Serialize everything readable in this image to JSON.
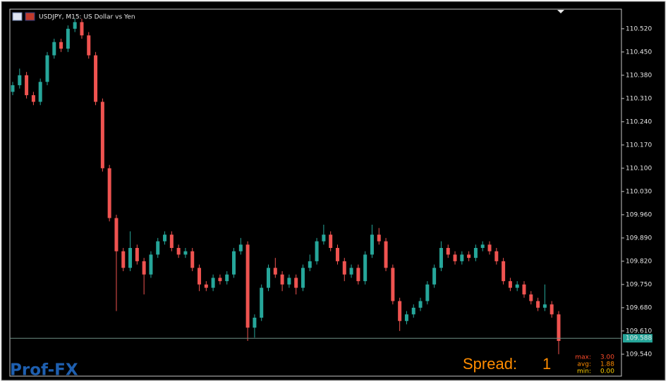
{
  "chart_data": {
    "type": "candlestick",
    "title": "USDJPY, M15:  US Dollar vs Yen",
    "up_color": "#26a69a",
    "down_color": "#ef5350",
    "open": [
      110.33,
      110.35,
      110.38,
      110.32,
      110.3,
      110.36,
      110.44,
      110.48,
      110.46,
      110.52,
      110.54,
      110.5,
      110.44,
      110.3,
      110.1,
      109.95,
      109.85,
      109.8,
      109.86,
      109.82,
      109.78,
      109.84,
      109.88,
      109.9,
      109.86,
      109.84,
      109.85,
      109.8,
      109.75,
      109.74,
      109.77,
      109.76,
      109.78,
      109.85,
      109.87,
      109.62,
      109.65,
      109.74,
      109.8,
      109.78,
      109.75,
      109.77,
      109.74,
      109.8,
      109.82,
      109.88,
      109.9,
      109.86,
      109.82,
      109.78,
      109.8,
      109.76,
      109.84,
      109.9,
      109.88,
      109.8,
      109.7,
      109.64,
      109.66,
      109.68,
      109.7,
      109.75,
      109.8,
      109.86,
      109.84,
      109.82,
      109.84,
      109.83,
      109.86,
      109.87,
      109.85,
      109.82,
      109.76,
      109.74,
      109.75,
      109.72,
      109.7,
      109.68,
      109.69,
      109.66
    ],
    "high": [
      110.36,
      110.4,
      110.39,
      110.33,
      110.37,
      110.45,
      110.49,
      110.49,
      110.53,
      110.55,
      110.55,
      110.51,
      110.45,
      110.31,
      110.11,
      109.96,
      109.86,
      109.91,
      109.87,
      109.83,
      109.85,
      109.89,
      109.91,
      109.91,
      109.87,
      109.86,
      109.86,
      109.81,
      109.76,
      109.78,
      109.78,
      109.79,
      109.86,
      109.89,
      109.88,
      109.66,
      109.75,
      109.81,
      109.83,
      109.79,
      109.78,
      109.78,
      109.81,
      109.84,
      109.89,
      109.93,
      109.91,
      109.87,
      109.83,
      109.81,
      109.81,
      109.85,
      109.93,
      109.92,
      109.89,
      109.81,
      109.71,
      109.67,
      109.69,
      109.71,
      109.76,
      109.81,
      109.88,
      109.87,
      109.85,
      109.85,
      109.85,
      109.87,
      109.88,
      109.88,
      109.86,
      109.83,
      109.77,
      109.76,
      109.76,
      109.73,
      109.71,
      109.75,
      109.7,
      109.67
    ],
    "low": [
      110.32,
      110.34,
      110.31,
      110.29,
      110.29,
      110.35,
      110.43,
      110.45,
      110.45,
      110.51,
      110.49,
      110.43,
      110.29,
      110.09,
      109.94,
      109.67,
      109.79,
      109.79,
      109.81,
      109.72,
      109.77,
      109.83,
      109.87,
      109.85,
      109.83,
      109.83,
      109.79,
      109.73,
      109.73,
      109.73,
      109.75,
      109.75,
      109.77,
      109.84,
      109.58,
      109.59,
      109.64,
      109.73,
      109.77,
      109.73,
      109.74,
      109.72,
      109.73,
      109.79,
      109.81,
      109.87,
      109.85,
      109.81,
      109.76,
      109.77,
      109.75,
      109.75,
      109.83,
      109.87,
      109.79,
      109.69,
      109.61,
      109.63,
      109.65,
      109.67,
      109.69,
      109.74,
      109.79,
      109.83,
      109.81,
      109.81,
      109.82,
      109.82,
      109.85,
      109.84,
      109.81,
      109.75,
      109.73,
      109.73,
      109.71,
      109.69,
      109.67,
      109.67,
      109.65,
      109.54
    ],
    "close": [
      110.35,
      110.38,
      110.32,
      110.3,
      110.36,
      110.44,
      110.48,
      110.46,
      110.52,
      110.54,
      110.5,
      110.44,
      110.3,
      110.1,
      109.95,
      109.85,
      109.8,
      109.86,
      109.82,
      109.78,
      109.84,
      109.88,
      109.9,
      109.86,
      109.84,
      109.85,
      109.8,
      109.75,
      109.74,
      109.77,
      109.76,
      109.78,
      109.85,
      109.87,
      109.62,
      109.65,
      109.74,
      109.8,
      109.78,
      109.75,
      109.77,
      109.74,
      109.8,
      109.82,
      109.88,
      109.9,
      109.86,
      109.82,
      109.78,
      109.8,
      109.76,
      109.84,
      109.9,
      109.88,
      109.8,
      109.7,
      109.64,
      109.66,
      109.68,
      109.7,
      109.75,
      109.8,
      109.86,
      109.84,
      109.82,
      109.84,
      109.83,
      109.86,
      109.87,
      109.85,
      109.82,
      109.76,
      109.74,
      109.75,
      109.72,
      109.7,
      109.68,
      109.69,
      109.66,
      109.58
    ],
    "ylim": [
      109.474,
      110.579
    ],
    "yticks": [
      {
        "value": 110.52,
        "label": "110.520"
      },
      {
        "value": 110.45,
        "label": "110.450"
      },
      {
        "value": 110.38,
        "label": "110.380"
      },
      {
        "value": 110.31,
        "label": "110.310"
      },
      {
        "value": 110.24,
        "label": "110.240"
      },
      {
        "value": 110.17,
        "label": "110.170"
      },
      {
        "value": 110.1,
        "label": "110.100"
      },
      {
        "value": 110.03,
        "label": "110.030"
      },
      {
        "value": 109.96,
        "label": "109.960"
      },
      {
        "value": 109.89,
        "label": "109.890"
      },
      {
        "value": 109.82,
        "label": "109.820"
      },
      {
        "value": 109.75,
        "label": "109.750"
      },
      {
        "value": 109.68,
        "label": "109.680"
      },
      {
        "value": 109.61,
        "label": "109.610"
      },
      {
        "value": 109.54,
        "label": "109.540"
      }
    ],
    "last_price": {
      "value": 109.588,
      "label": "109.588"
    },
    "spread": {
      "label": "Spread:",
      "value": "1",
      "stats": [
        {
          "name": "max:",
          "value": "3.00"
        },
        {
          "name": "avg:",
          "value": "1.88"
        },
        {
          "name": "min:",
          "value": "0.00"
        }
      ]
    }
  },
  "logo": "Prof-FX"
}
